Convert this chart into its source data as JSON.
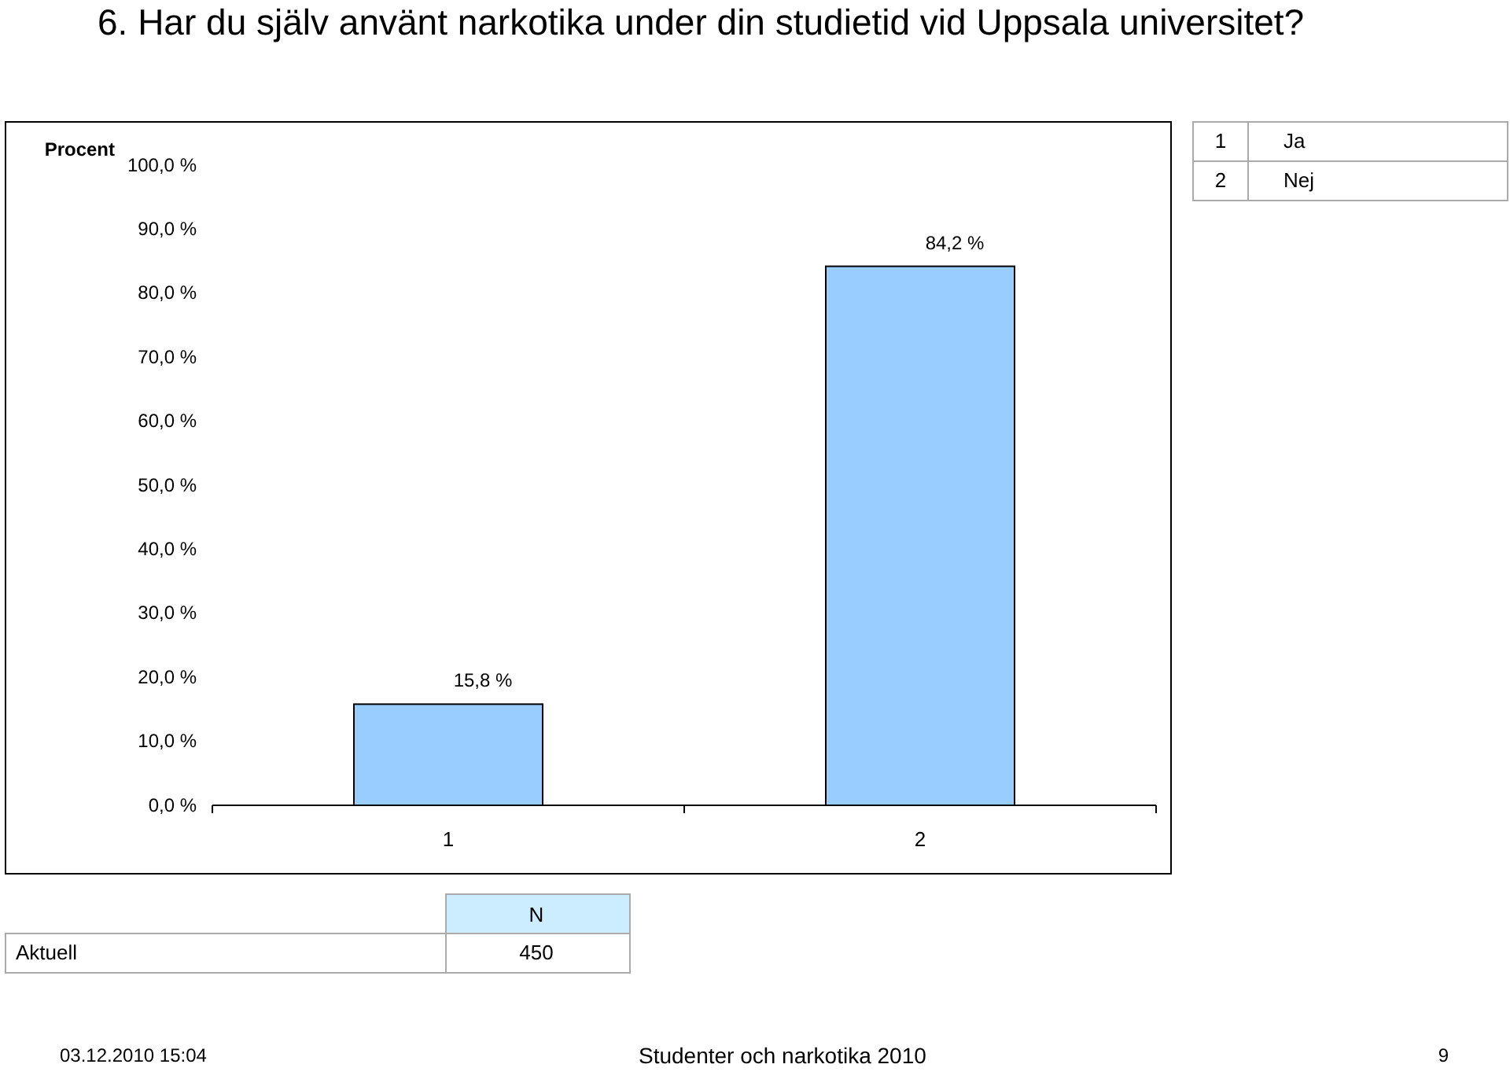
{
  "chart_data": {
    "type": "bar",
    "title": "6. Har du själv använt narkotika under din studietid vid Uppsala universitet?",
    "ylabel": "Procent",
    "categories": [
      "1",
      "2"
    ],
    "values": [
      15.8,
      84.2
    ],
    "value_labels": [
      "15,8 %",
      "84,2 %"
    ],
    "color": "#99ccff",
    "ylim": [
      0,
      100
    ],
    "yticks": [
      {
        "value": 0,
        "label": "0,0 %"
      },
      {
        "value": 10,
        "label": "10,0 %"
      },
      {
        "value": 20,
        "label": "20,0 %"
      },
      {
        "value": 30,
        "label": "30,0 %"
      },
      {
        "value": 40,
        "label": "40,0 %"
      },
      {
        "value": 50,
        "label": "50,0 %"
      },
      {
        "value": 60,
        "label": "60,0 %"
      },
      {
        "value": 70,
        "label": "70,0 %"
      },
      {
        "value": 80,
        "label": "80,0 %"
      },
      {
        "value": 90,
        "label": "90,0 %"
      },
      {
        "value": 100,
        "label": "100,0 %"
      }
    ],
    "grid": false,
    "annotations": [
      "1",
      "Ja",
      "2",
      "Nej",
      "N",
      "Aktuell",
      "450",
      "03.12.2010 15:04",
      "Studenter och narkotika 2010",
      "9"
    ]
  }
}
